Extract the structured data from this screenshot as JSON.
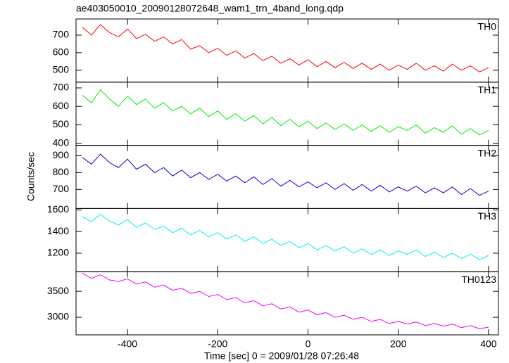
{
  "chart_data": {
    "type": "line",
    "title": "ae403050010_20090128072648_wam1_trn_4band_long.qdp",
    "xlabel": "Time [sec] 0 = 2009/01/28 07:26:48",
    "ylabel": "Counts/sec",
    "xlim": [
      -514,
      422
    ],
    "xticks": [
      -400,
      -200,
      0,
      200,
      400
    ],
    "x": [
      -500,
      -480,
      -460,
      -440,
      -420,
      -400,
      -380,
      -360,
      -340,
      -320,
      -300,
      -280,
      -260,
      -240,
      -220,
      -200,
      -180,
      -160,
      -140,
      -120,
      -100,
      -80,
      -60,
      -40,
      -20,
      0,
      20,
      40,
      60,
      80,
      100,
      120,
      140,
      160,
      180,
      200,
      220,
      240,
      260,
      280,
      300,
      320,
      340,
      360,
      380,
      400
    ],
    "series": [
      {
        "name": "TH0",
        "color": "#ff0000",
        "ylim": [
          432,
          792
        ],
        "yticks": [
          500,
          600,
          700
        ],
        "values": [
          745,
          700,
          760,
          715,
          690,
          735,
          680,
          705,
          665,
          690,
          650,
          675,
          620,
          640,
          600,
          625,
          585,
          610,
          570,
          595,
          555,
          580,
          540,
          565,
          530,
          560,
          520,
          550,
          515,
          545,
          510,
          540,
          505,
          535,
          500,
          530,
          505,
          540,
          500,
          525,
          495,
          535,
          500,
          525,
          490,
          515
        ]
      },
      {
        "name": "TH1",
        "color": "#00ee00",
        "ylim": [
          389,
          731
        ],
        "yticks": [
          400,
          500,
          600,
          700
        ],
        "values": [
          660,
          620,
          690,
          640,
          600,
          655,
          610,
          640,
          590,
          620,
          575,
          600,
          560,
          590,
          545,
          575,
          530,
          560,
          520,
          550,
          505,
          540,
          495,
          530,
          490,
          520,
          480,
          510,
          475,
          505,
          470,
          500,
          465,
          495,
          460,
          490,
          470,
          500,
          455,
          485,
          460,
          495,
          450,
          480,
          445,
          470
        ]
      },
      {
        "name": "TH2",
        "color": "#0000dd",
        "ylim": [
          587,
          962
        ],
        "yticks": [
          700,
          800,
          900
        ],
        "values": [
          890,
          850,
          910,
          860,
          830,
          880,
          820,
          850,
          800,
          830,
          780,
          815,
          770,
          800,
          760,
          790,
          750,
          780,
          740,
          775,
          730,
          765,
          720,
          755,
          715,
          745,
          710,
          740,
          700,
          735,
          695,
          730,
          690,
          725,
          685,
          715,
          690,
          720,
          680,
          710,
          680,
          715,
          670,
          705,
          665,
          690
        ]
      },
      {
        "name": "TH3",
        "color": "#00eeee",
        "ylim": [
          1029,
          1613
        ],
        "yticks": [
          1200,
          1400,
          1600
        ],
        "values": [
          1540,
          1490,
          1560,
          1500,
          1460,
          1510,
          1440,
          1480,
          1420,
          1450,
          1390,
          1430,
          1370,
          1410,
          1350,
          1390,
          1330,
          1370,
          1310,
          1350,
          1290,
          1330,
          1270,
          1310,
          1250,
          1290,
          1230,
          1270,
          1220,
          1260,
          1200,
          1240,
          1190,
          1230,
          1180,
          1220,
          1190,
          1230,
          1170,
          1210,
          1160,
          1200,
          1150,
          1190,
          1140,
          1180
        ]
      },
      {
        "name": "TH0123",
        "color": "#ee00ee",
        "ylim": [
          2662,
          3878
        ],
        "yticks": [
          3000,
          3500
        ],
        "values": [
          3850,
          3750,
          3820,
          3720,
          3690,
          3740,
          3640,
          3680,
          3580,
          3620,
          3520,
          3560,
          3460,
          3500,
          3400,
          3440,
          3340,
          3380,
          3280,
          3320,
          3220,
          3260,
          3160,
          3200,
          3100,
          3140,
          3050,
          3090,
          3000,
          3040,
          2960,
          3000,
          2920,
          2960,
          2880,
          2920,
          2870,
          2910,
          2840,
          2880,
          2830,
          2870,
          2800,
          2840,
          2780,
          2810
        ]
      }
    ]
  }
}
